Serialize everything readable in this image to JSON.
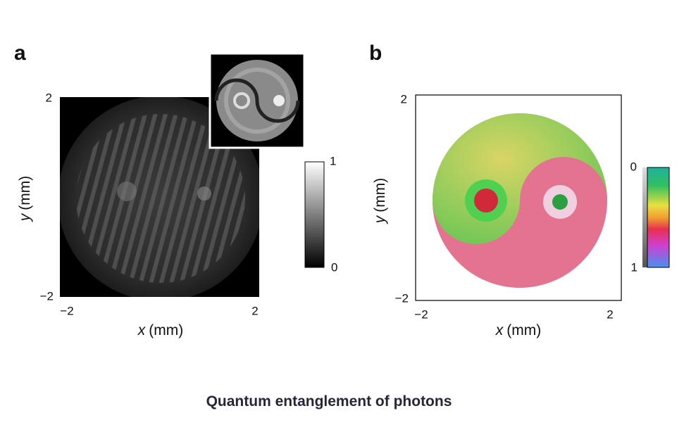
{
  "panels": [
    {
      "label": "a",
      "x_label": {
        "var": "x",
        "unit": "(mm)"
      },
      "y_label": {
        "var": "y",
        "unit": "(mm)"
      },
      "x_ticks": [
        "−2",
        "2"
      ],
      "y_ticks": [
        "2",
        "−2"
      ],
      "colorbar_ticks": [
        "1",
        "0"
      ]
    },
    {
      "label": "b",
      "x_label": {
        "var": "x",
        "unit": "(mm)"
      },
      "y_label": {
        "var": "y",
        "unit": "(mm)"
      },
      "x_ticks": [
        "−2",
        "2"
      ],
      "y_ticks": [
        "2",
        "−2"
      ],
      "colorbar_ticks": [
        "0",
        "1"
      ]
    }
  ],
  "caption": "Quantum entanglement of photons"
}
